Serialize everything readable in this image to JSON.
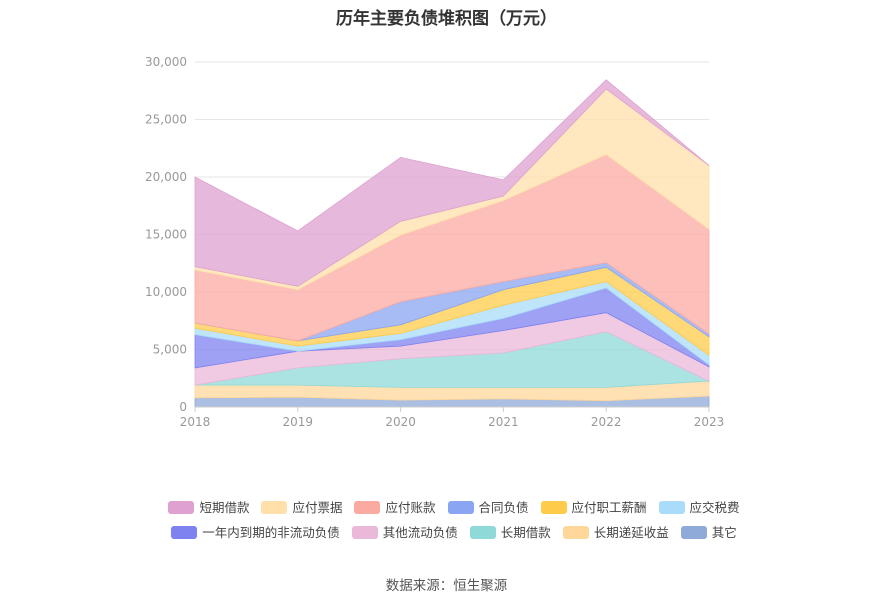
{
  "chart_data": {
    "type": "area",
    "title": "历年主要负债堆积图（万元）",
    "categories": [
      "2018",
      "2019",
      "2020",
      "2021",
      "2022",
      "2023"
    ],
    "ylim": [
      0,
      30000
    ],
    "yticks": [
      "0",
      "5,000",
      "10,000",
      "15,000",
      "20,000",
      "25,000",
      "30,000"
    ],
    "ytick_values": [
      0,
      5000,
      10000,
      15000,
      20000,
      25000,
      30000
    ],
    "grid": true,
    "legend_position": "bottom",
    "series": [
      {
        "name": "其它",
        "color": "#8fa9d8",
        "values": [
          800,
          850,
          600,
          700,
          550,
          950
        ]
      },
      {
        "name": "长期递延收益",
        "color": "#ffd79a",
        "values": [
          1100,
          1050,
          1100,
          1000,
          1150,
          1300
        ]
      },
      {
        "name": "长期借款",
        "color": "#8fd9d9",
        "values": [
          0,
          1500,
          2500,
          3000,
          4850,
          0
        ]
      },
      {
        "name": "其他流动负债",
        "color": "#eab8d8",
        "values": [
          1500,
          1450,
          1100,
          1950,
          1650,
          1250
        ]
      },
      {
        "name": "一年内到期的非流动负债",
        "color": "#7d82f0",
        "values": [
          2900,
          0,
          550,
          1050,
          2150,
          150
        ]
      },
      {
        "name": "应交税费",
        "color": "#a8dcf8",
        "values": [
          550,
          450,
          550,
          1150,
          550,
          850
        ]
      },
      {
        "name": "应付职工薪酬",
        "color": "#ffcb4a",
        "values": [
          450,
          450,
          750,
          1350,
          1250,
          1600
        ]
      },
      {
        "name": "合同负债",
        "color": "#8aa5f2",
        "values": [
          0,
          0,
          2000,
          700,
          400,
          250
        ]
      },
      {
        "name": "应付账款",
        "color": "#fbaaa2",
        "values": [
          4600,
          4450,
          5800,
          7050,
          9400,
          9100
        ]
      },
      {
        "name": "应付票据",
        "color": "#ffe0aa",
        "values": [
          300,
          300,
          1200,
          400,
          5700,
          5550
        ]
      },
      {
        "name": "短期借款",
        "color": "#dea1d0",
        "values": [
          7800,
          4800,
          5550,
          1400,
          800,
          0
        ]
      }
    ]
  },
  "source": "数据来源：恒生聚源"
}
